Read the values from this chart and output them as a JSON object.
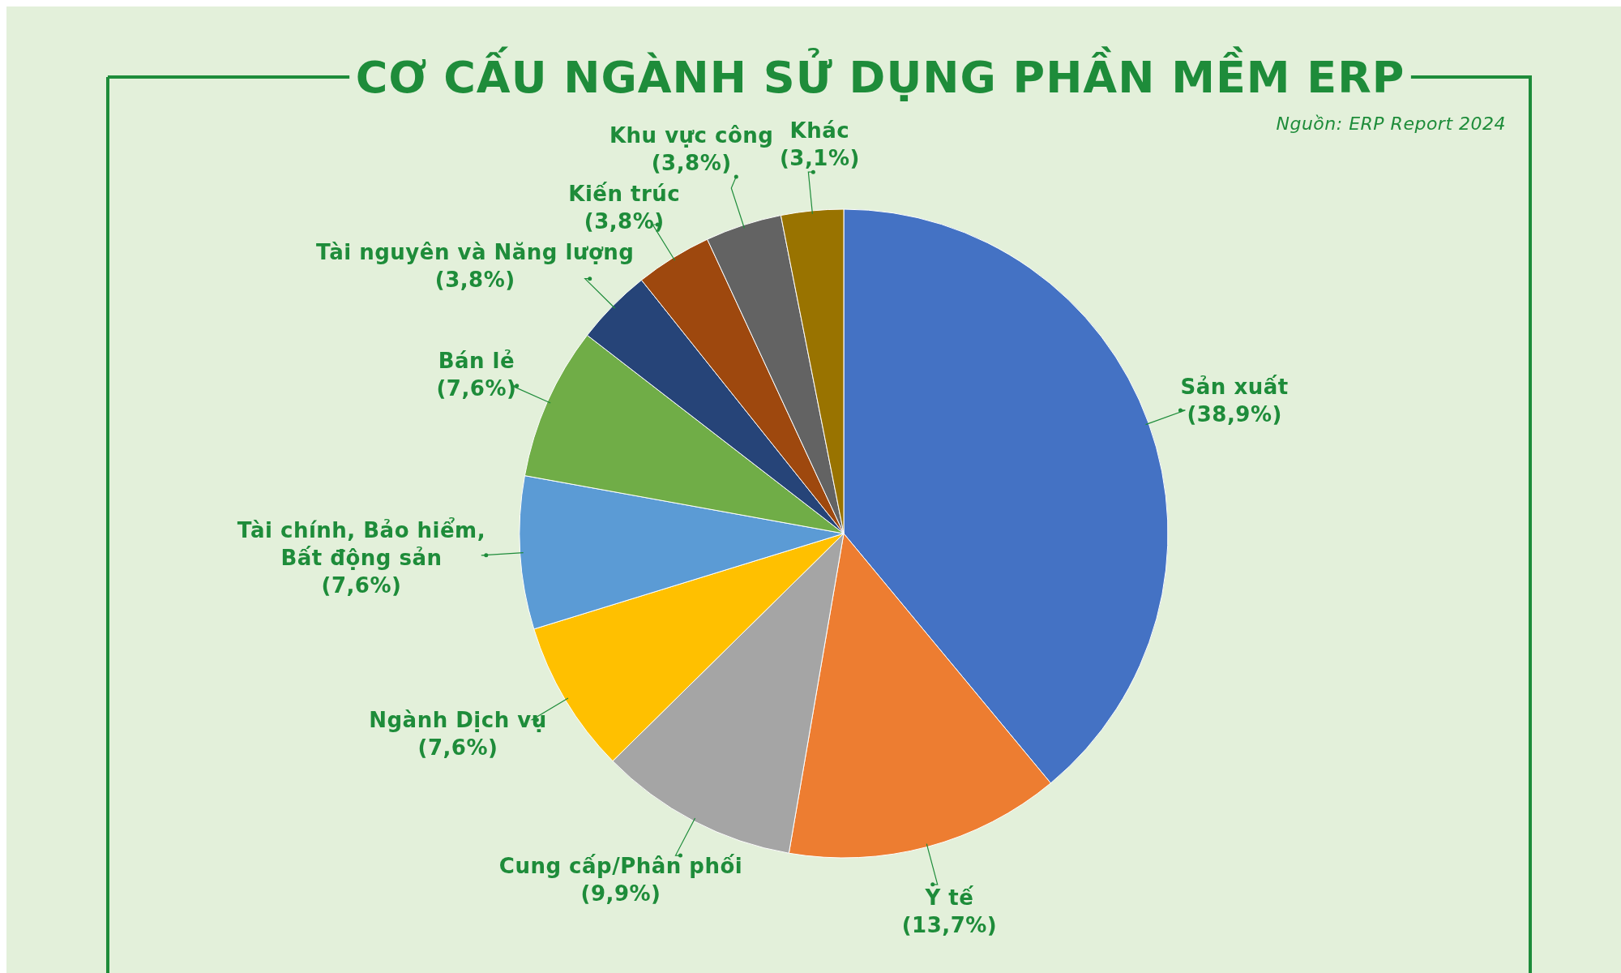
{
  "chart_data": {
    "type": "pie",
    "title": "CƠ CẤU NGÀNH SỬ DỤNG PHẦN MỀM ERP",
    "annotations": [
      "Nguồn: ERP Report 2024"
    ],
    "categories": [
      "Sản xuất",
      "Y tế",
      "Cung cấp/Phân phối",
      "Ngành Dịch vụ",
      "Tài chính, Bảo hiểm, Bất động sản",
      "Bán lẻ",
      "Tài nguyên và Năng lượng",
      "Kiến trúc",
      "Khu vực công",
      "Khác"
    ],
    "values": [
      38.9,
      13.7,
      9.9,
      7.6,
      7.6,
      7.6,
      3.8,
      3.8,
      3.8,
      3.1
    ],
    "colors": [
      "#4472c4",
      "#ed7d31",
      "#a5a5a5",
      "#ffc000",
      "#5b9bd5",
      "#70ad47",
      "#264478",
      "#9e480e",
      "#636363",
      "#997300"
    ],
    "value_labels": [
      "(38,9%)",
      "(13,7%)",
      "(9,9%)",
      "(7,6%)",
      "(7,6%)",
      "(7,6%)",
      "(3,8%)",
      "(3,8%)",
      "(3,8%)",
      "(3,1%)"
    ]
  }
}
